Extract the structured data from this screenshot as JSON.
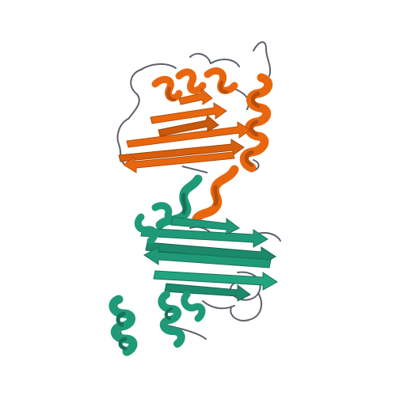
{
  "image": {
    "subject": "protein-ribbon-structure",
    "background_color": "#ffffff",
    "chains": [
      {
        "id": "chain-a",
        "color": "#e8670e",
        "shade": "#b84e0a",
        "domain": "upper"
      },
      {
        "id": "chain-b",
        "color": "#1f9a78",
        "shade": "#157258",
        "domain": "lower"
      }
    ],
    "loop_color": "#5a5f6a"
  }
}
